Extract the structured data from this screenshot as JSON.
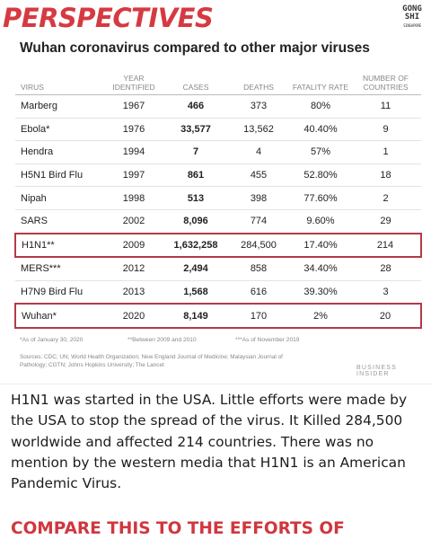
{
  "header": {
    "title": "PERSPECTIVES",
    "subtitle": "Wuhan coronavirus compared to other major viruses"
  },
  "table": {
    "columns": [
      "VIRUS",
      "YEAR IDENTIFIED",
      "CASES",
      "DEATHS",
      "FATALITY RATE",
      "NUMBER OF COUNTRIES"
    ],
    "rows": [
      {
        "virus": "Marberg",
        "year": "1967",
        "cases": "466",
        "deaths": "373",
        "fatality": "80%",
        "countries": "11",
        "highlight": false
      },
      {
        "virus": "Ebola*",
        "year": "1976",
        "cases": "33,577",
        "deaths": "13,562",
        "fatality": "40.40%",
        "countries": "9",
        "highlight": false
      },
      {
        "virus": "Hendra",
        "year": "1994",
        "cases": "7",
        "deaths": "4",
        "fatality": "57%",
        "countries": "1",
        "highlight": false
      },
      {
        "virus": "H5N1 Bird Flu",
        "year": "1997",
        "cases": "861",
        "deaths": "455",
        "fatality": "52.80%",
        "countries": "18",
        "highlight": false
      },
      {
        "virus": "Nipah",
        "year": "1998",
        "cases": "513",
        "deaths": "398",
        "fatality": "77.60%",
        "countries": "2",
        "highlight": false
      },
      {
        "virus": "SARS",
        "year": "2002",
        "cases": "8,096",
        "deaths": "774",
        "fatality": "9.60%",
        "countries": "29",
        "highlight": false
      },
      {
        "virus": "H1N1**",
        "year": "2009",
        "cases": "1,632,258",
        "deaths": "284,500",
        "fatality": "17.40%",
        "countries": "214",
        "highlight": true
      },
      {
        "virus": "MERS***",
        "year": "2012",
        "cases": "2,494",
        "deaths": "858",
        "fatality": "34.40%",
        "countries": "28",
        "highlight": false
      },
      {
        "virus": "H7N9 Bird Flu",
        "year": "2013",
        "cases": "1,568",
        "deaths": "616",
        "fatality": "39.30%",
        "countries": "3",
        "highlight": false
      },
      {
        "virus": "Wuhan*",
        "year": "2020",
        "cases": "8,149",
        "deaths": "170",
        "fatality": "2%",
        "countries": "20",
        "highlight": true
      }
    ]
  },
  "footnotes": [
    "*As of January 30, 2020",
    "**Between 2009 and 2010",
    "***As of November 2019"
  ],
  "sources": "Sources: CDC; UN; World Health Organization; New England Journal of Medicine; Malaysian Journal of Pathology; CGTN; Johns Hopkins University; The Lancet",
  "brand": "BUSINESS INSIDER",
  "stamp": {
    "line1": "GONG",
    "line2": "SHI",
    "line3": "SINGAPORE"
  },
  "caption": "H1N1 was started in the USA. Little efforts were made by the USA to stop the spread of the virus. It Killed 284,500 worldwide and affected 214 countries. There was no mention by the western media that H1N1 is an American Pandemic Virus.",
  "call_to_action": "COMPARE THIS TO THE EFFORTS OF",
  "colors": {
    "title_red": "#d63a41",
    "highlight_border": "#b33a48"
  }
}
